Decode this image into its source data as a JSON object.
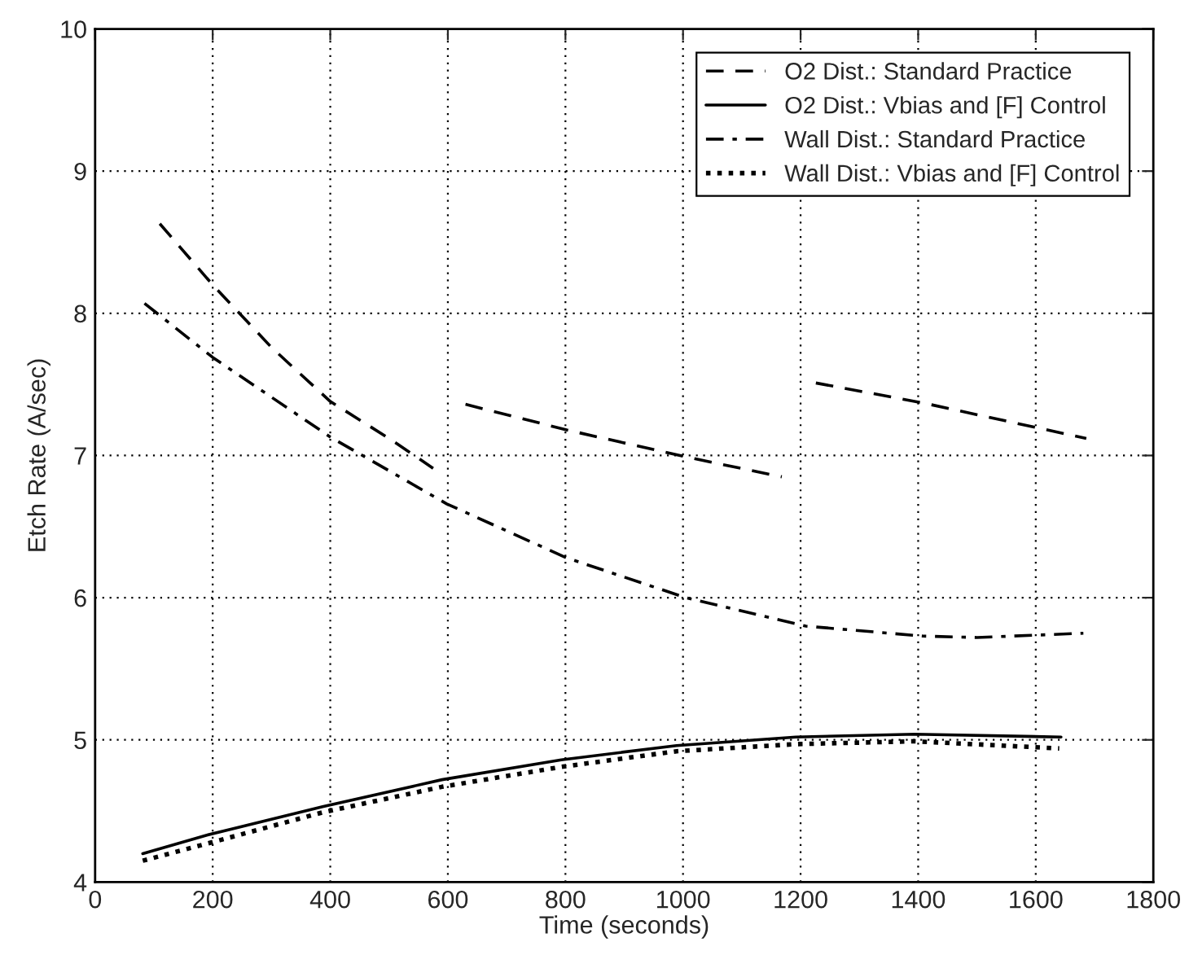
{
  "chart_data": {
    "type": "line",
    "xlabel": "Time (seconds)",
    "ylabel": "Etch Rate (A/sec)",
    "xlim": [
      0,
      1800
    ],
    "xticks": [
      0,
      200,
      400,
      600,
      800,
      1000,
      1200,
      1400,
      1600,
      1800
    ],
    "ylim": [
      4,
      10
    ],
    "yticks": [
      4,
      5,
      6,
      7,
      8,
      9,
      10
    ],
    "grid": true,
    "legend": "top right",
    "series": [
      {
        "name": "O2 Dist.: Standard Practice",
        "color": "#000000",
        "line_style": "dashed",
        "x": [
          110,
          200,
          300,
          400,
          500,
          575,
          600,
          630,
          802,
          1005,
          1168,
          1200,
          1226,
          1408,
          1686
        ],
        "values": [
          8.63,
          8.2,
          7.76,
          7.38,
          7.12,
          6.91,
          null,
          7.36,
          7.18,
          6.99,
          6.85,
          null,
          7.51,
          7.37,
          7.12
        ]
      },
      {
        "name": "O2 Dist.: Vbias and [F] Control",
        "color": "#000000",
        "line_style": "solid",
        "x": [
          81,
          190,
          387,
          590,
          793,
          989,
          1192,
          1394,
          1643
        ],
        "values": [
          4.2,
          4.33,
          4.53,
          4.72,
          4.86,
          4.96,
          5.02,
          5.04,
          5.02
        ]
      },
      {
        "name": "Wall Dist.: Standard Practice",
        "color": "#000000",
        "line_style": "dashdot",
        "x": [
          84,
          200,
          400,
          598,
          802,
          1005,
          1209,
          1408,
          1500,
          1681
        ],
        "values": [
          8.07,
          7.69,
          7.13,
          6.66,
          6.28,
          6.0,
          5.8,
          5.73,
          5.72,
          5.75
        ]
      },
      {
        "name": "Wall Dist.: Vbias and [F] Control",
        "color": "#000000",
        "line_style": "dotted",
        "x": [
          81,
          190,
          387,
          590,
          793,
          989,
          1192,
          1394,
          1640
        ],
        "values": [
          4.15,
          4.27,
          4.49,
          4.67,
          4.81,
          4.92,
          4.97,
          4.99,
          4.94
        ]
      }
    ]
  }
}
